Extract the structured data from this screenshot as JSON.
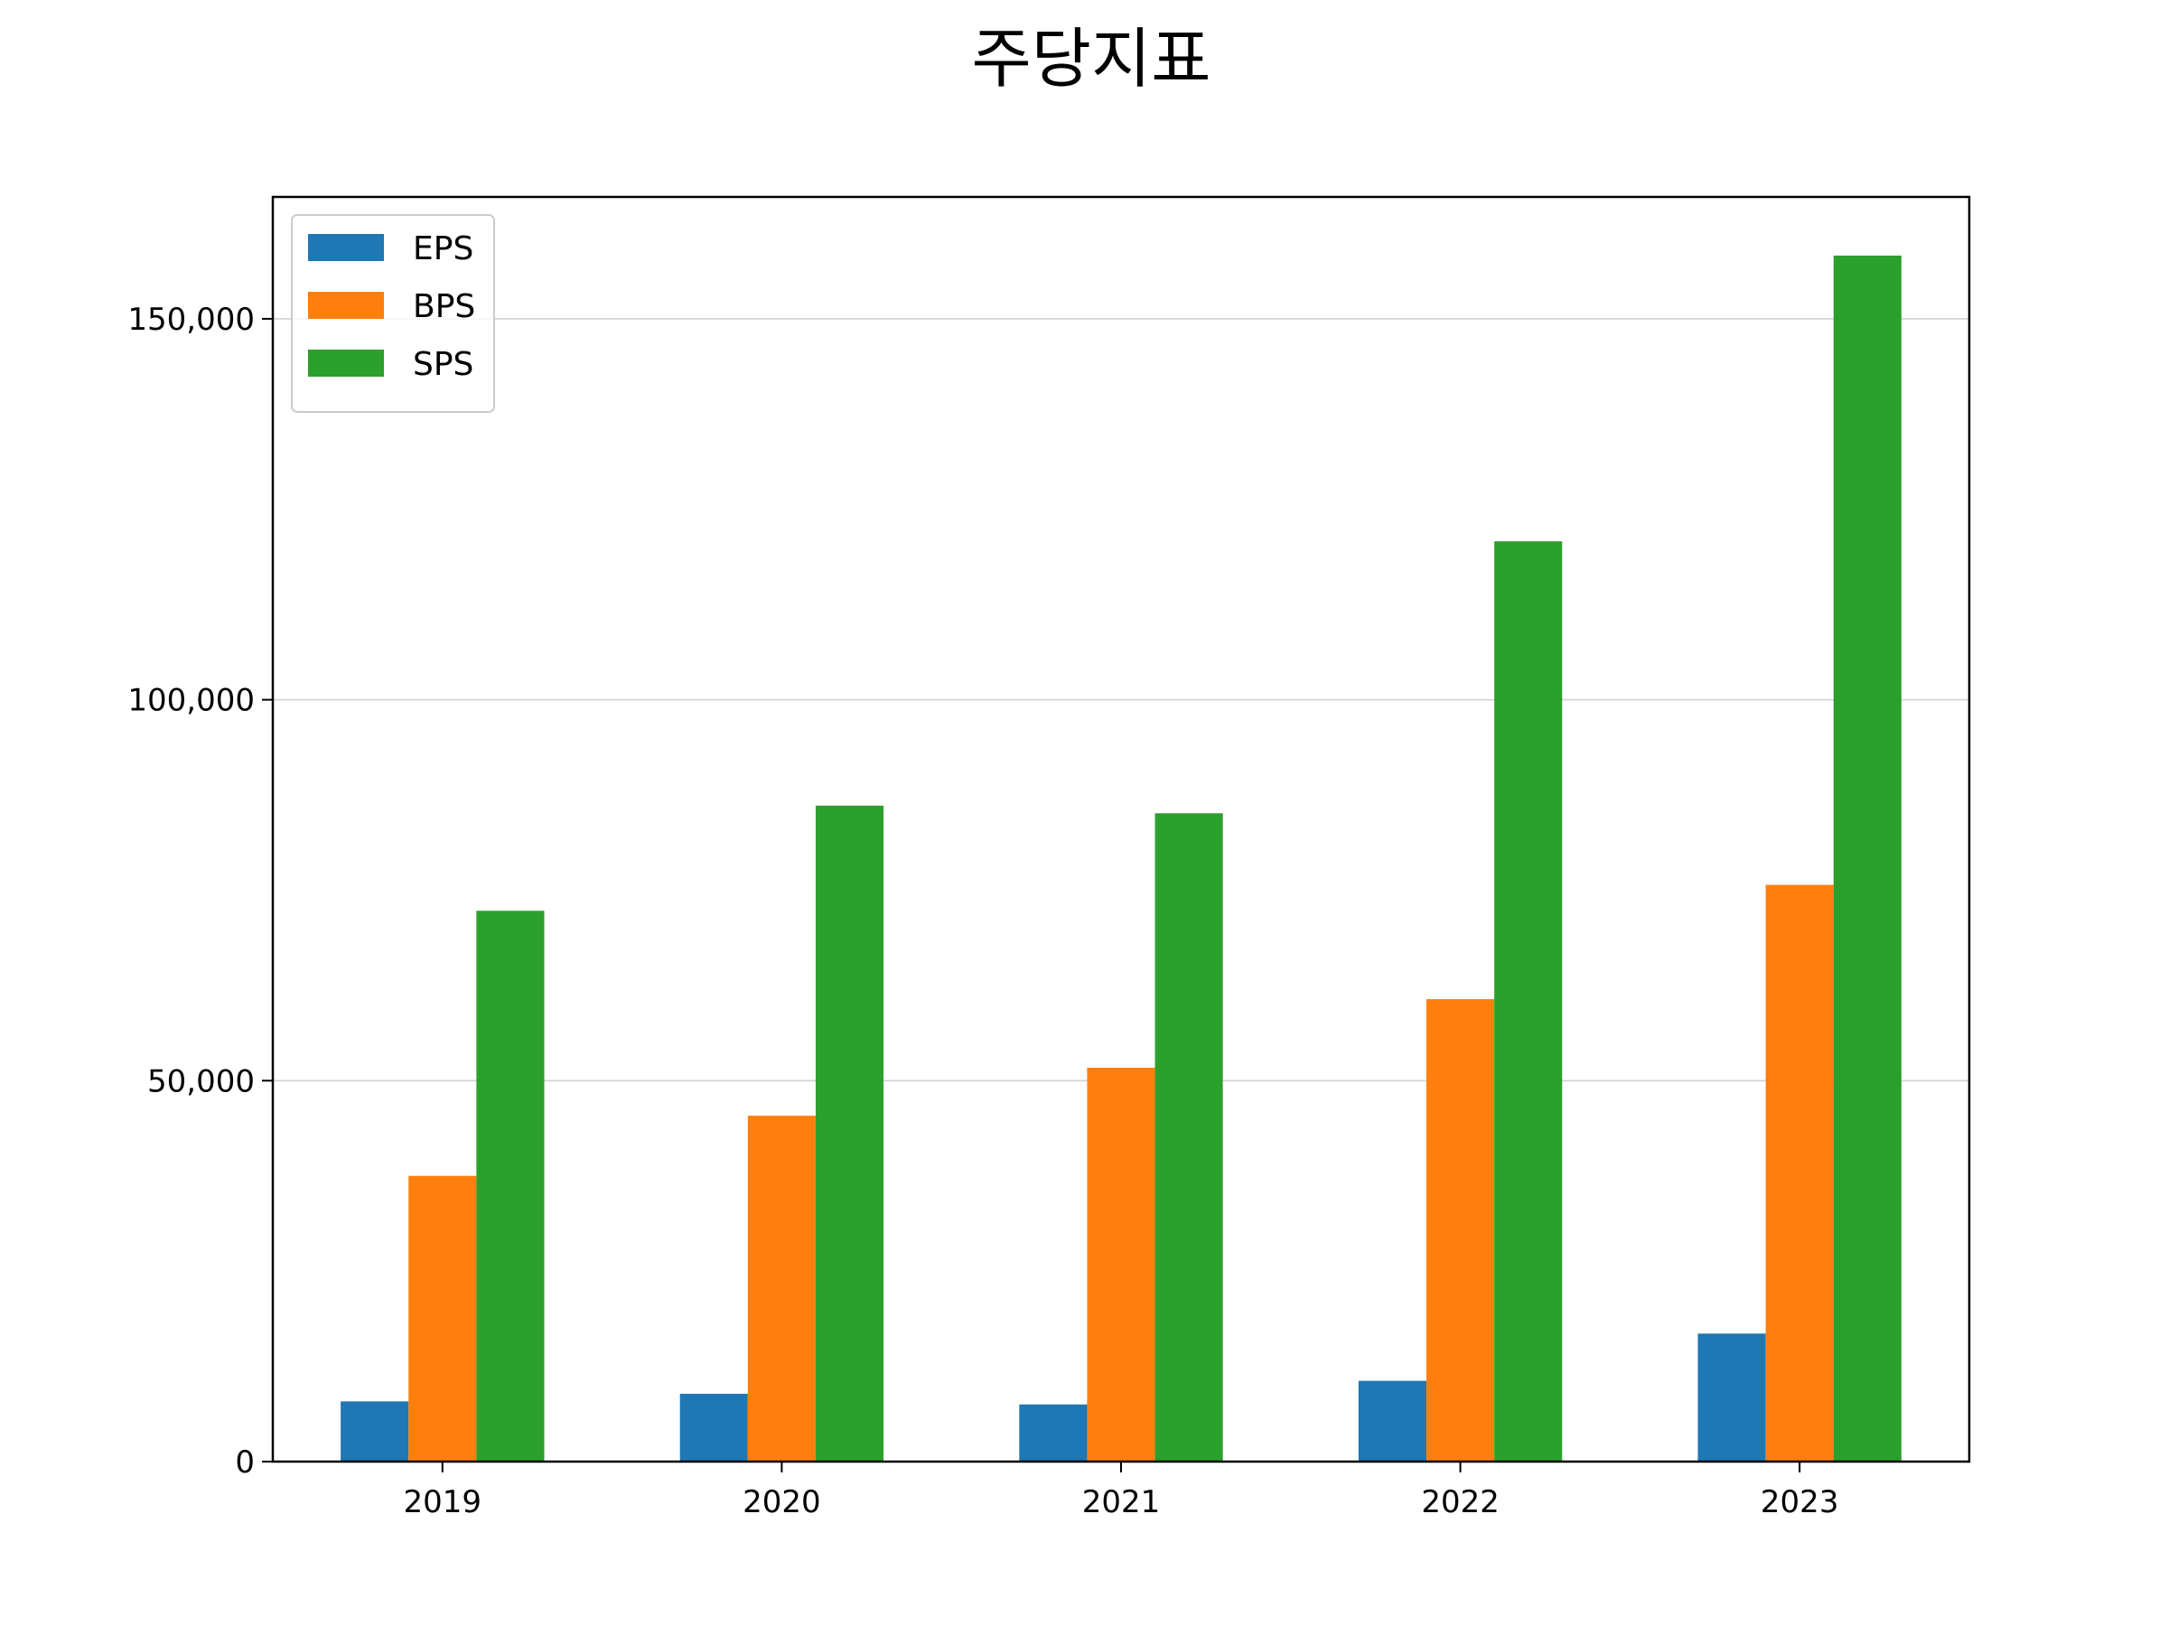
{
  "chart_data": {
    "type": "bar",
    "title": "주당지표",
    "xlabel": "",
    "ylabel": "",
    "categories": [
      "2019",
      "2020",
      "2021",
      "2022",
      "2023"
    ],
    "series": [
      {
        "name": "EPS",
        "color": "#1f77b4",
        "values": [
          7900,
          8900,
          7500,
          10600,
          16800
        ]
      },
      {
        "name": "BPS",
        "color": "#ff7f0e",
        "values": [
          37500,
          45400,
          51700,
          60700,
          75700
        ]
      },
      {
        "name": "SPS",
        "color": "#2ca02c",
        "values": [
          72300,
          86100,
          85100,
          120800,
          158300
        ]
      }
    ],
    "ylim": [
      0,
      166000
    ],
    "yticks": [
      0,
      50000,
      100000,
      150000
    ],
    "ytick_labels": [
      "0",
      "50,000",
      "100,000",
      "150,000"
    ],
    "grid": "y",
    "legend_position": "top-left"
  }
}
